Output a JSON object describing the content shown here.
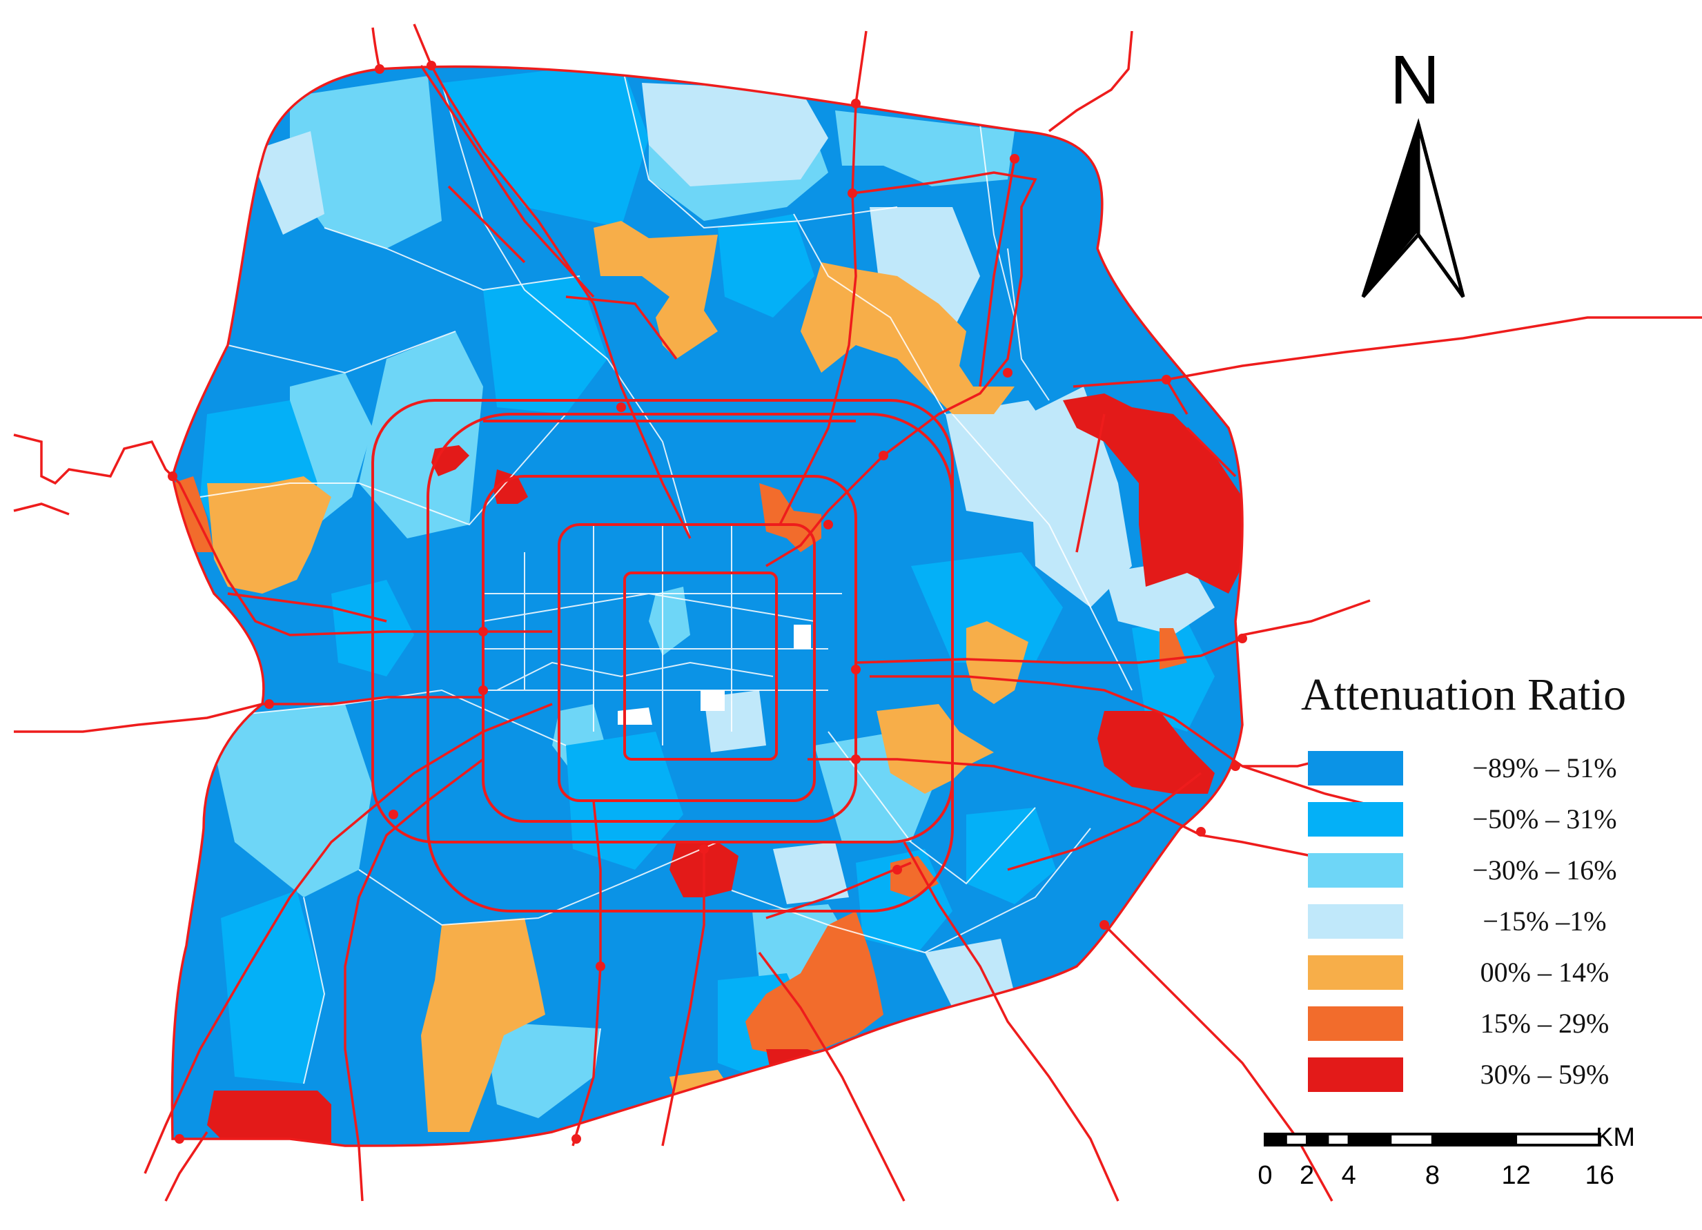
{
  "colors": {
    "c1": "#0b93e6",
    "c2": "#04b0f7",
    "c3": "#6ed6f7",
    "c4": "#c0e8fa",
    "c5": "#f7ae49",
    "c6": "#f26c2c",
    "c7": "#e31a19",
    "road": "#ee1c1c",
    "background": "#ffffff"
  },
  "legend": {
    "title": "Attenuation Ratio",
    "items": [
      {
        "label": "−89% – 51%",
        "color": "#0b93e6"
      },
      {
        "label": "−50% – 31%",
        "color": "#04b0f7"
      },
      {
        "label": "−30% – 16%",
        "color": "#6ed6f7"
      },
      {
        "label": "−15% –1%",
        "color": "#c0e8fa"
      },
      {
        "label": "00% – 14%",
        "color": "#f7ae49"
      },
      {
        "label": "15% – 29%",
        "color": "#f26c2c"
      },
      {
        "label": "30% – 59%",
        "color": "#e31a19"
      }
    ]
  },
  "north_arrow": {
    "label": "N"
  },
  "scale_bar": {
    "unit": "KM",
    "ticks": [
      "0",
      "2",
      "4",
      "8",
      "12",
      "16"
    ],
    "tick_values_km": [
      0,
      2,
      4,
      8,
      12,
      16
    ]
  }
}
